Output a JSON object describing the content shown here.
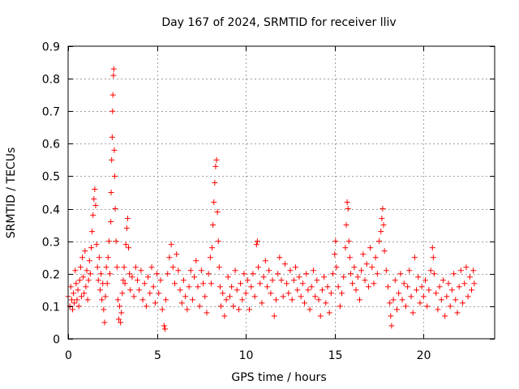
{
  "chart_data": {
    "type": "scatter",
    "title": "Day 167 of 2024, SRMTID for receiver lliv",
    "xlabel": "GPS time / hours",
    "ylabel": "SRMTID / TECUs",
    "xlim": [
      0,
      24
    ],
    "ylim": [
      0,
      0.9
    ],
    "xticks": [
      0,
      5,
      10,
      15,
      20
    ],
    "yticks": [
      0,
      0.1,
      0.2,
      0.3,
      0.4,
      0.5,
      0.6,
      0.7,
      0.8,
      0.9
    ],
    "xtick_labels": [
      "0",
      "5",
      "10",
      "15",
      "20"
    ],
    "ytick_labels": [
      "0",
      "0.1",
      "0.2",
      "0.3",
      "0.4",
      "0.5",
      "0.6",
      "0.7",
      "0.8",
      "0.9"
    ],
    "grid": true,
    "marker": "+",
    "color": "#ff0000",
    "series": [
      {
        "name": "SRMTID",
        "points": [
          [
            0.0,
            0.13
          ],
          [
            0.1,
            0.1
          ],
          [
            0.15,
            0.16
          ],
          [
            0.2,
            0.12
          ],
          [
            0.25,
            0.09
          ],
          [
            0.3,
            0.14
          ],
          [
            0.35,
            0.11
          ],
          [
            0.4,
            0.21
          ],
          [
            0.45,
            0.17
          ],
          [
            0.5,
            0.12
          ],
          [
            0.55,
            0.15
          ],
          [
            0.6,
            0.1
          ],
          [
            0.65,
            0.18
          ],
          [
            0.7,
            0.22
          ],
          [
            0.75,
            0.13
          ],
          [
            0.8,
            0.25
          ],
          [
            0.85,
            0.19
          ],
          [
            0.9,
            0.14
          ],
          [
            0.95,
            0.27
          ],
          [
            1.0,
            0.16
          ],
          [
            1.05,
            0.21
          ],
          [
            1.1,
            0.12
          ],
          [
            1.15,
            0.18
          ],
          [
            1.2,
            0.24
          ],
          [
            1.25,
            0.2
          ],
          [
            1.3,
            0.28
          ],
          [
            1.35,
            0.33
          ],
          [
            1.4,
            0.38
          ],
          [
            1.45,
            0.43
          ],
          [
            1.5,
            0.46
          ],
          [
            1.55,
            0.41
          ],
          [
            1.6,
            0.29
          ],
          [
            1.65,
            0.22
          ],
          [
            1.7,
            0.18
          ],
          [
            1.75,
            0.25
          ],
          [
            1.8,
            0.15
          ],
          [
            1.85,
            0.2
          ],
          [
            1.9,
            0.12
          ],
          [
            1.95,
            0.17
          ],
          [
            2.0,
            0.09
          ],
          [
            2.05,
            0.05
          ],
          [
            2.1,
            0.13
          ],
          [
            2.15,
            0.22
          ],
          [
            2.2,
            0.17
          ],
          [
            2.25,
            0.25
          ],
          [
            2.3,
            0.3
          ],
          [
            2.35,
            0.2
          ],
          [
            2.4,
            0.36
          ],
          [
            2.42,
            0.45
          ],
          [
            2.45,
            0.55
          ],
          [
            2.48,
            0.62
          ],
          [
            2.5,
            0.7
          ],
          [
            2.52,
            0.75
          ],
          [
            2.55,
            0.81
          ],
          [
            2.57,
            0.83
          ],
          [
            2.6,
            0.58
          ],
          [
            2.62,
            0.5
          ],
          [
            2.65,
            0.4
          ],
          [
            2.7,
            0.3
          ],
          [
            2.75,
            0.22
          ],
          [
            2.8,
            0.12
          ],
          [
            2.85,
            0.06
          ],
          [
            2.9,
            0.1
          ],
          [
            2.95,
            0.05
          ],
          [
            3.0,
            0.08
          ],
          [
            3.05,
            0.14
          ],
          [
            3.1,
            0.18
          ],
          [
            3.15,
            0.22
          ],
          [
            3.2,
            0.17
          ],
          [
            3.25,
            0.29
          ],
          [
            3.3,
            0.34
          ],
          [
            3.35,
            0.37
          ],
          [
            3.4,
            0.28
          ],
          [
            3.45,
            0.2
          ],
          [
            3.5,
            0.15
          ],
          [
            3.6,
            0.19
          ],
          [
            3.7,
            0.13
          ],
          [
            3.8,
            0.22
          ],
          [
            3.9,
            0.18
          ],
          [
            4.0,
            0.15
          ],
          [
            4.1,
            0.21
          ],
          [
            4.2,
            0.12
          ],
          [
            4.3,
            0.17
          ],
          [
            4.4,
            0.1
          ],
          [
            4.5,
            0.19
          ],
          [
            4.6,
            0.14
          ],
          [
            4.7,
            0.22
          ],
          [
            4.8,
            0.16
          ],
          [
            4.9,
            0.11
          ],
          [
            5.0,
            0.2
          ],
          [
            5.1,
            0.14
          ],
          [
            5.2,
            0.18
          ],
          [
            5.3,
            0.09
          ],
          [
            5.4,
            0.04
          ],
          [
            5.45,
            0.03
          ],
          [
            5.5,
            0.12
          ],
          [
            5.6,
            0.2
          ],
          [
            5.7,
            0.25
          ],
          [
            5.8,
            0.29
          ],
          [
            5.9,
            0.22
          ],
          [
            6.0,
            0.17
          ],
          [
            6.1,
            0.26
          ],
          [
            6.2,
            0.21
          ],
          [
            6.3,
            0.15
          ],
          [
            6.4,
            0.11
          ],
          [
            6.5,
            0.18
          ],
          [
            6.6,
            0.13
          ],
          [
            6.7,
            0.09
          ],
          [
            6.8,
            0.16
          ],
          [
            6.9,
            0.21
          ],
          [
            7.0,
            0.12
          ],
          [
            7.1,
            0.19
          ],
          [
            7.2,
            0.24
          ],
          [
            7.3,
            0.16
          ],
          [
            7.4,
            0.1
          ],
          [
            7.5,
            0.21
          ],
          [
            7.6,
            0.17
          ],
          [
            7.7,
            0.13
          ],
          [
            7.8,
            0.08
          ],
          [
            7.9,
            0.2
          ],
          [
            8.0,
            0.25
          ],
          [
            8.05,
            0.17
          ],
          [
            8.1,
            0.28
          ],
          [
            8.15,
            0.35
          ],
          [
            8.2,
            0.42
          ],
          [
            8.25,
            0.48
          ],
          [
            8.3,
            0.53
          ],
          [
            8.35,
            0.55
          ],
          [
            8.4,
            0.39
          ],
          [
            8.45,
            0.3
          ],
          [
            8.5,
            0.22
          ],
          [
            8.55,
            0.16
          ],
          [
            8.6,
            0.1
          ],
          [
            8.7,
            0.14
          ],
          [
            8.8,
            0.07
          ],
          [
            8.9,
            0.12
          ],
          [
            9.0,
            0.19
          ],
          [
            9.1,
            0.13
          ],
          [
            9.2,
            0.16
          ],
          [
            9.3,
            0.1
          ],
          [
            9.4,
            0.21
          ],
          [
            9.5,
            0.15
          ],
          [
            9.6,
            0.09
          ],
          [
            9.7,
            0.17
          ],
          [
            9.8,
            0.12
          ],
          [
            9.9,
            0.2
          ],
          [
            10.0,
            0.14
          ],
          [
            10.1,
            0.18
          ],
          [
            10.2,
            0.09
          ],
          [
            10.3,
            0.16
          ],
          [
            10.4,
            0.2
          ],
          [
            10.5,
            0.13
          ],
          [
            10.6,
            0.29
          ],
          [
            10.65,
            0.3
          ],
          [
            10.7,
            0.22
          ],
          [
            10.8,
            0.17
          ],
          [
            10.9,
            0.11
          ],
          [
            11.0,
            0.19
          ],
          [
            11.1,
            0.24
          ],
          [
            11.2,
            0.16
          ],
          [
            11.3,
            0.21
          ],
          [
            11.4,
            0.14
          ],
          [
            11.5,
            0.18
          ],
          [
            11.6,
            0.07
          ],
          [
            11.7,
            0.12
          ],
          [
            11.8,
            0.2
          ],
          [
            11.9,
            0.25
          ],
          [
            12.0,
            0.18
          ],
          [
            12.1,
            0.13
          ],
          [
            12.2,
            0.23
          ],
          [
            12.3,
            0.17
          ],
          [
            12.4,
            0.14
          ],
          [
            12.5,
            0.21
          ],
          [
            12.6,
            0.12
          ],
          [
            12.7,
            0.18
          ],
          [
            12.8,
            0.22
          ],
          [
            12.9,
            0.15
          ],
          [
            13.0,
            0.19
          ],
          [
            13.1,
            0.13
          ],
          [
            13.2,
            0.17
          ],
          [
            13.3,
            0.11
          ],
          [
            13.4,
            0.2
          ],
          [
            13.5,
            0.15
          ],
          [
            13.6,
            0.09
          ],
          [
            13.7,
            0.16
          ],
          [
            13.8,
            0.21
          ],
          [
            13.9,
            0.13
          ],
          [
            14.0,
            0.18
          ],
          [
            14.1,
            0.12
          ],
          [
            14.2,
            0.07
          ],
          [
            14.3,
            0.15
          ],
          [
            14.4,
            0.19
          ],
          [
            14.5,
            0.11
          ],
          [
            14.6,
            0.16
          ],
          [
            14.7,
            0.08
          ],
          [
            14.8,
            0.14
          ],
          [
            14.9,
            0.2
          ],
          [
            15.0,
            0.26
          ],
          [
            15.05,
            0.3
          ],
          [
            15.1,
            0.22
          ],
          [
            15.2,
            0.16
          ],
          [
            15.3,
            0.1
          ],
          [
            15.4,
            0.14
          ],
          [
            15.5,
            0.19
          ],
          [
            15.6,
            0.28
          ],
          [
            15.65,
            0.35
          ],
          [
            15.7,
            0.42
          ],
          [
            15.75,
            0.4
          ],
          [
            15.8,
            0.3
          ],
          [
            15.85,
            0.25
          ],
          [
            15.9,
            0.2
          ],
          [
            16.0,
            0.17
          ],
          [
            16.1,
            0.22
          ],
          [
            16.2,
            0.15
          ],
          [
            16.3,
            0.19
          ],
          [
            16.4,
            0.12
          ],
          [
            16.5,
            0.21
          ],
          [
            16.6,
            0.26
          ],
          [
            16.7,
            0.18
          ],
          [
            16.8,
            0.23
          ],
          [
            16.9,
            0.16
          ],
          [
            17.0,
            0.28
          ],
          [
            17.1,
            0.22
          ],
          [
            17.2,
            0.17
          ],
          [
            17.3,
            0.25
          ],
          [
            17.4,
            0.2
          ],
          [
            17.5,
            0.3
          ],
          [
            17.6,
            0.33
          ],
          [
            17.65,
            0.37
          ],
          [
            17.7,
            0.4
          ],
          [
            17.75,
            0.35
          ],
          [
            17.8,
            0.27
          ],
          [
            17.9,
            0.21
          ],
          [
            18.0,
            0.16
          ],
          [
            18.1,
            0.11
          ],
          [
            18.15,
            0.07
          ],
          [
            18.2,
            0.04
          ],
          [
            18.3,
            0.12
          ],
          [
            18.4,
            0.18
          ],
          [
            18.5,
            0.09
          ],
          [
            18.6,
            0.14
          ],
          [
            18.7,
            0.2
          ],
          [
            18.8,
            0.12
          ],
          [
            18.9,
            0.17
          ],
          [
            19.0,
            0.1
          ],
          [
            19.1,
            0.16
          ],
          [
            19.2,
            0.21
          ],
          [
            19.3,
            0.13
          ],
          [
            19.4,
            0.08
          ],
          [
            19.5,
            0.25
          ],
          [
            19.6,
            0.15
          ],
          [
            19.7,
            0.19
          ],
          [
            19.8,
            0.11
          ],
          [
            19.9,
            0.16
          ],
          [
            20.0,
            0.13
          ],
          [
            20.1,
            0.18
          ],
          [
            20.2,
            0.1
          ],
          [
            20.3,
            0.15
          ],
          [
            20.4,
            0.21
          ],
          [
            20.5,
            0.28
          ],
          [
            20.55,
            0.25
          ],
          [
            20.6,
            0.2
          ],
          [
            20.7,
            0.14
          ],
          [
            20.8,
            0.09
          ],
          [
            20.9,
            0.16
          ],
          [
            21.0,
            0.12
          ],
          [
            21.1,
            0.18
          ],
          [
            21.2,
            0.07
          ],
          [
            21.3,
            0.13
          ],
          [
            21.4,
            0.17
          ],
          [
            21.5,
            0.1
          ],
          [
            21.6,
            0.15
          ],
          [
            21.7,
            0.2
          ],
          [
            21.8,
            0.12
          ],
          [
            21.9,
            0.08
          ],
          [
            22.0,
            0.16
          ],
          [
            22.1,
            0.21
          ],
          [
            22.2,
            0.11
          ],
          [
            22.3,
            0.17
          ],
          [
            22.4,
            0.22
          ],
          [
            22.5,
            0.13
          ],
          [
            22.6,
            0.19
          ],
          [
            22.7,
            0.15
          ],
          [
            22.8,
            0.21
          ],
          [
            22.85,
            0.17
          ]
        ]
      }
    ]
  }
}
